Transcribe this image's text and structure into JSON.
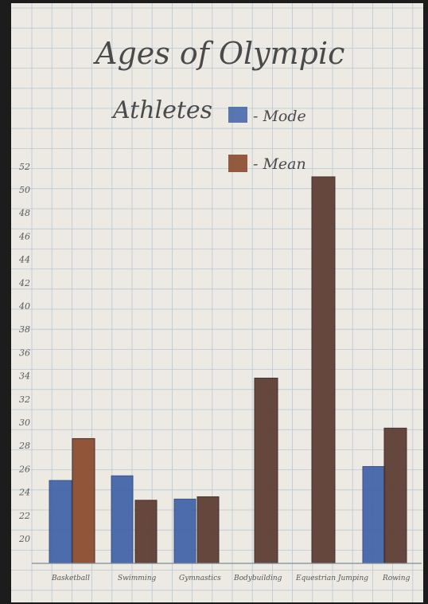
{
  "colors": {
    "paper": "#eceae3",
    "grid": "#b9c8d6",
    "frame": "#1c1c1c",
    "mode": "#3f62a8",
    "mean_brown": "#8a4a2c",
    "mean_dark": "#5b3a31",
    "ink": "#4a4a4a"
  },
  "chart_data": {
    "type": "bar",
    "title_line1": "Ages of Olympic",
    "title_line2": "Athletes",
    "legend": [
      {
        "label": "- Mode",
        "color": "#3f62a8"
      },
      {
        "label": "- Mean",
        "color": "#8a4a2c"
      }
    ],
    "legend_position": "top-right",
    "categories": [
      "Basketball",
      "Swimming",
      "Gymnastics",
      "Bodybuilding",
      "Equestrian Jumping",
      "Rowing"
    ],
    "series": [
      {
        "name": "Mode",
        "values": [
          25,
          25.4,
          23.4,
          null,
          null,
          26.2
        ]
      },
      {
        "name": "Mean",
        "values": [
          28.6,
          23.3,
          23.6,
          33.8,
          51.1,
          29.5
        ]
      }
    ],
    "mean_colors": [
      "#8a4a2c",
      "#5b3a31",
      "#5b3a31",
      "#5b3a31",
      "#5b3a31",
      "#5b3a31"
    ],
    "y_ticks": [
      20,
      22,
      24,
      26,
      28,
      30,
      32,
      34,
      36,
      38,
      40,
      42,
      44,
      46,
      48,
      50,
      52
    ],
    "ylim": [
      19,
      52
    ],
    "grid": true
  }
}
